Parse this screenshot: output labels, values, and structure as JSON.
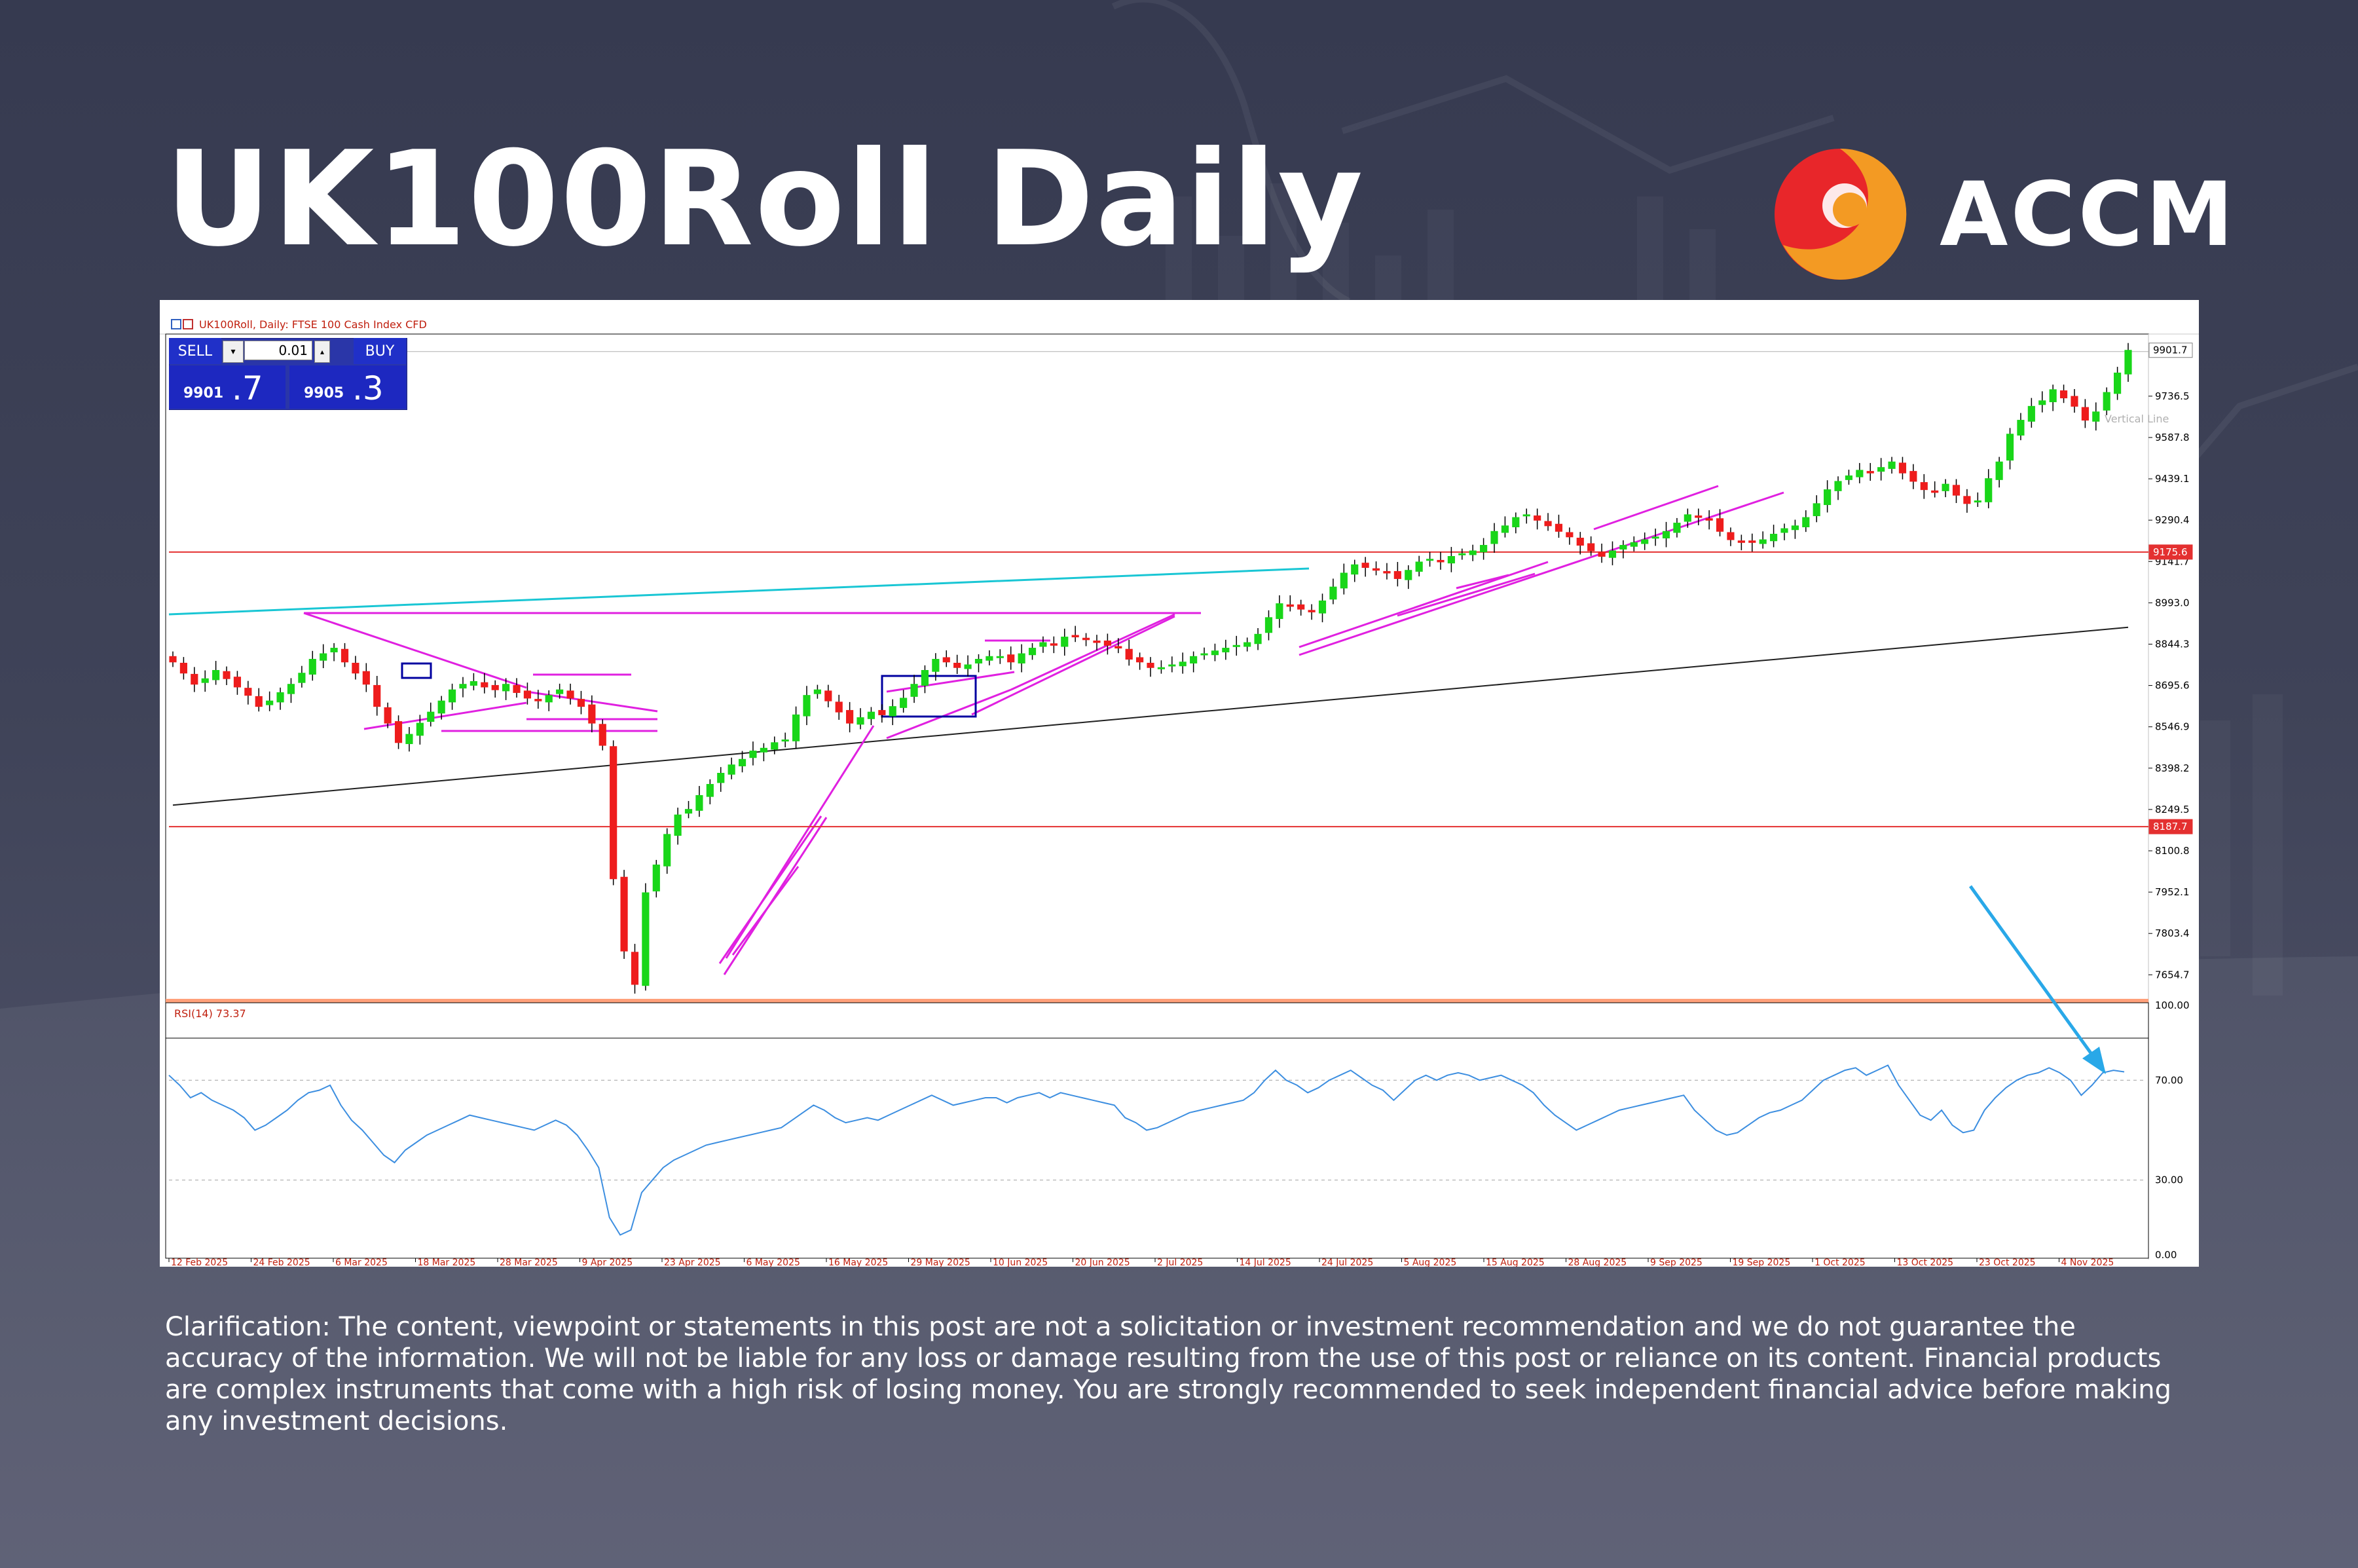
{
  "title": "UK100Roll Daily",
  "logo": {
    "text": "ACCM",
    "brand_colors": [
      "#e8262a",
      "#f39a23"
    ]
  },
  "chart_header": "UK100Roll, Daily:  FTSE 100 Cash Index CFD",
  "trade_panel": {
    "sell_label": "SELL",
    "buy_label": "BUY",
    "lot": "0.01",
    "sell_price_main": "9901",
    "sell_price_frac": ".7",
    "buy_price_main": "9905",
    "buy_price_frac": ".3"
  },
  "vertical_line_label": "Vertical Line",
  "disclaimer": "Clarification: The content, viewpoint or statements in this post are not a solicitation or investment recommendation and we do not guarantee the accuracy of the information. We will not be liable for any loss or damage resulting from the use of this post or reliance on its content. Financial products are complex instruments that come with a high risk of losing money. You are strongly recommended to seek independent financial advice before making any investment decisions.",
  "chart_data": [
    {
      "type": "candlestick",
      "symbol": "UK100Roll",
      "timeframe": "Daily",
      "title": "UK100Roll, Daily:  FTSE 100 Cash Index CFD",
      "ylim": [
        7580,
        9960
      ],
      "y_ticks": [
        "9736.5",
        "9587.8",
        "9439.1",
        "9290.4",
        "9141.7",
        "8993.0",
        "8844.3",
        "8695.6",
        "8546.9",
        "8398.2",
        "8249.5",
        "8100.8",
        "7952.1",
        "7803.4",
        "7654.7"
      ],
      "x_ticks": [
        "12 Feb 2025",
        "24 Feb 2025",
        "6 Mar 2025",
        "18 Mar 2025",
        "28 Mar 2025",
        "9 Apr 2025",
        "23 Apr 2025",
        "6 May 2025",
        "16 May 2025",
        "29 May 2025",
        "10 Jun 2025",
        "20 Jun 2025",
        "2 Jul 2025",
        "14 Jul 2025",
        "24 Jul 2025",
        "5 Aug 2025",
        "15 Aug 2025",
        "28 Aug 2025",
        "9 Sep 2025",
        "19 Sep 2025",
        "1 Oct 2025",
        "13 Oct 2025",
        "23 Oct 2025",
        "4 Nov 2025"
      ],
      "current_price": 9901.7,
      "horizontal_levels": [
        9175.6,
        8187.7
      ],
      "closes": [
        8780,
        8740,
        8700,
        8720,
        8750,
        8720,
        8690,
        8660,
        8620,
        8640,
        8670,
        8700,
        8740,
        8790,
        8810,
        8830,
        8780,
        8740,
        8700,
        8620,
        8560,
        8490,
        8520,
        8560,
        8600,
        8640,
        8680,
        8700,
        8710,
        8690,
        8680,
        8700,
        8670,
        8650,
        8640,
        8660,
        8680,
        8650,
        8620,
        8560,
        8480,
        8000,
        7740,
        7620,
        7950,
        8050,
        8160,
        8230,
        8250,
        8300,
        8340,
        8380,
        8410,
        8430,
        8460,
        8470,
        8490,
        8500,
        8590,
        8660,
        8680,
        8640,
        8600,
        8560,
        8580,
        8600,
        8590,
        8620,
        8650,
        8700,
        8750,
        8790,
        8780,
        8760,
        8770,
        8790,
        8800,
        8800,
        8780,
        8810,
        8830,
        8850,
        8840,
        8870,
        8870,
        8860,
        8850,
        8840,
        8830,
        8790,
        8780,
        8760,
        8760,
        8770,
        8780,
        8800,
        8810,
        8820,
        8830,
        8840,
        8850,
        8880,
        8940,
        8990,
        8980,
        8970,
        8960,
        9000,
        9050,
        9100,
        9130,
        9120,
        9110,
        9100,
        9080,
        9110,
        9140,
        9150,
        9140,
        9160,
        9170,
        9180,
        9200,
        9250,
        9270,
        9300,
        9310,
        9290,
        9270,
        9250,
        9230,
        9200,
        9180,
        9160,
        9180,
        9200,
        9210,
        9220,
        9230,
        9250,
        9280,
        9310,
        9300,
        9290,
        9250,
        9220,
        9210,
        9210,
        9220,
        9240,
        9260,
        9270,
        9300,
        9350,
        9400,
        9430,
        9450,
        9470,
        9460,
        9480,
        9500,
        9460,
        9430,
        9400,
        9390,
        9420,
        9380,
        9350,
        9360,
        9440,
        9500,
        9600,
        9650,
        9700,
        9720,
        9760,
        9730,
        9700,
        9650,
        9680,
        9750,
        9820,
        9901.7
      ]
    },
    {
      "type": "line",
      "title": "RSI(14) 73.37",
      "ylim": [
        0,
        100
      ],
      "y_ticks": [
        "100.00",
        "70.00",
        "30.00",
        "0.00"
      ],
      "levels": [
        70,
        30
      ],
      "x_ticks": [
        "12 Feb 2025",
        "24 Feb 2025",
        "6 Mar 2025",
        "18 Mar 2025",
        "28 Mar 2025",
        "9 Apr 2025",
        "23 Apr 2025",
        "6 May 2025",
        "16 May 2025",
        "29 May 2025",
        "10 Jun 2025",
        "20 Jun 2025",
        "2 Jul 2025",
        "14 Jul 2025",
        "24 Jul 2025",
        "5 Aug 2025",
        "15 Aug 2025",
        "28 Aug 2025",
        "9 Sep 2025",
        "19 Sep 2025",
        "1 Oct 2025",
        "13 Oct 2025",
        "23 Oct 2025",
        "4 Nov 2025"
      ],
      "values": [
        72,
        68,
        63,
        65,
        62,
        60,
        58,
        55,
        50,
        52,
        55,
        58,
        62,
        65,
        66,
        68,
        60,
        54,
        50,
        45,
        40,
        37,
        42,
        45,
        48,
        50,
        52,
        54,
        56,
        55,
        54,
        53,
        52,
        51,
        50,
        52,
        54,
        52,
        48,
        42,
        35,
        15,
        8,
        10,
        25,
        30,
        35,
        38,
        40,
        42,
        44,
        45,
        46,
        47,
        48,
        49,
        50,
        51,
        54,
        57,
        60,
        58,
        55,
        53,
        54,
        55,
        54,
        56,
        58,
        60,
        62,
        64,
        62,
        60,
        61,
        62,
        63,
        63,
        61,
        63,
        64,
        65,
        63,
        65,
        64,
        63,
        62,
        61,
        60,
        55,
        53,
        50,
        51,
        53,
        55,
        57,
        58,
        59,
        60,
        61,
        62,
        65,
        70,
        74,
        70,
        68,
        65,
        67,
        70,
        72,
        74,
        71,
        68,
        66,
        62,
        66,
        70,
        72,
        70,
        72,
        73,
        72,
        70,
        71,
        72,
        70,
        68,
        65,
        60,
        56,
        53,
        50,
        52,
        54,
        56,
        58,
        59,
        60,
        61,
        62,
        63,
        64,
        58,
        54,
        50,
        48,
        49,
        52,
        55,
        57,
        58,
        60,
        62,
        66,
        70,
        72,
        74,
        75,
        72,
        74,
        76,
        68,
        62,
        56,
        54,
        58,
        52,
        49,
        50,
        58,
        63,
        67,
        70,
        72,
        73,
        75,
        73,
        70,
        64,
        68,
        73,
        74,
        73.37
      ]
    }
  ]
}
